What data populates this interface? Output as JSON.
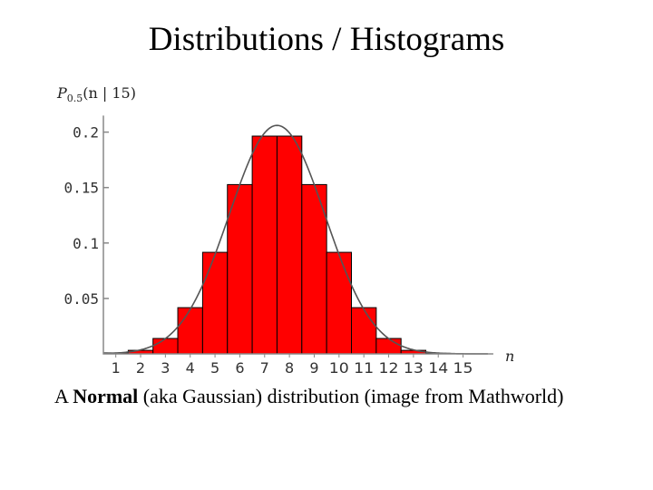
{
  "slide": {
    "title": "Distributions / Histograms",
    "caption": {
      "prefix": "A ",
      "bold": "Normal",
      "suffix": " (aka Gaussian) distribution (image from Mathworld)"
    }
  },
  "chart_data": {
    "type": "bar",
    "categories": [
      "1",
      "2",
      "3",
      "4",
      "5",
      "6",
      "7",
      "8",
      "9",
      "10",
      "11",
      "12",
      "13",
      "14",
      "15"
    ],
    "values": [
      0.0009,
      0.0032,
      0.0139,
      0.0417,
      0.0916,
      0.1527,
      0.1964,
      0.1964,
      0.1527,
      0.0916,
      0.0417,
      0.0139,
      0.0032,
      0.0005,
      3e-05
    ],
    "overlay_curve": {
      "type": "normal",
      "mean": 7.5,
      "sd": 1.936
    },
    "ylabel": "P0.5(n | 15)",
    "ylabel_main": "P",
    "ylabel_sub": "0.5",
    "ylabel_rest": "(n | 15)",
    "xlabel": "n",
    "y_ticks": [
      0.05,
      0.1,
      0.15,
      0.2
    ],
    "y_tick_labels": [
      "0.05",
      "0.1",
      "0.15",
      "0.2"
    ],
    "xlim": [
      0.5,
      16
    ],
    "ylim": [
      0,
      0.21
    ],
    "colors": {
      "bar_fill": "#ff0000",
      "bar_edge": "#000000",
      "curve": "#555555",
      "axis": "#888888"
    }
  }
}
